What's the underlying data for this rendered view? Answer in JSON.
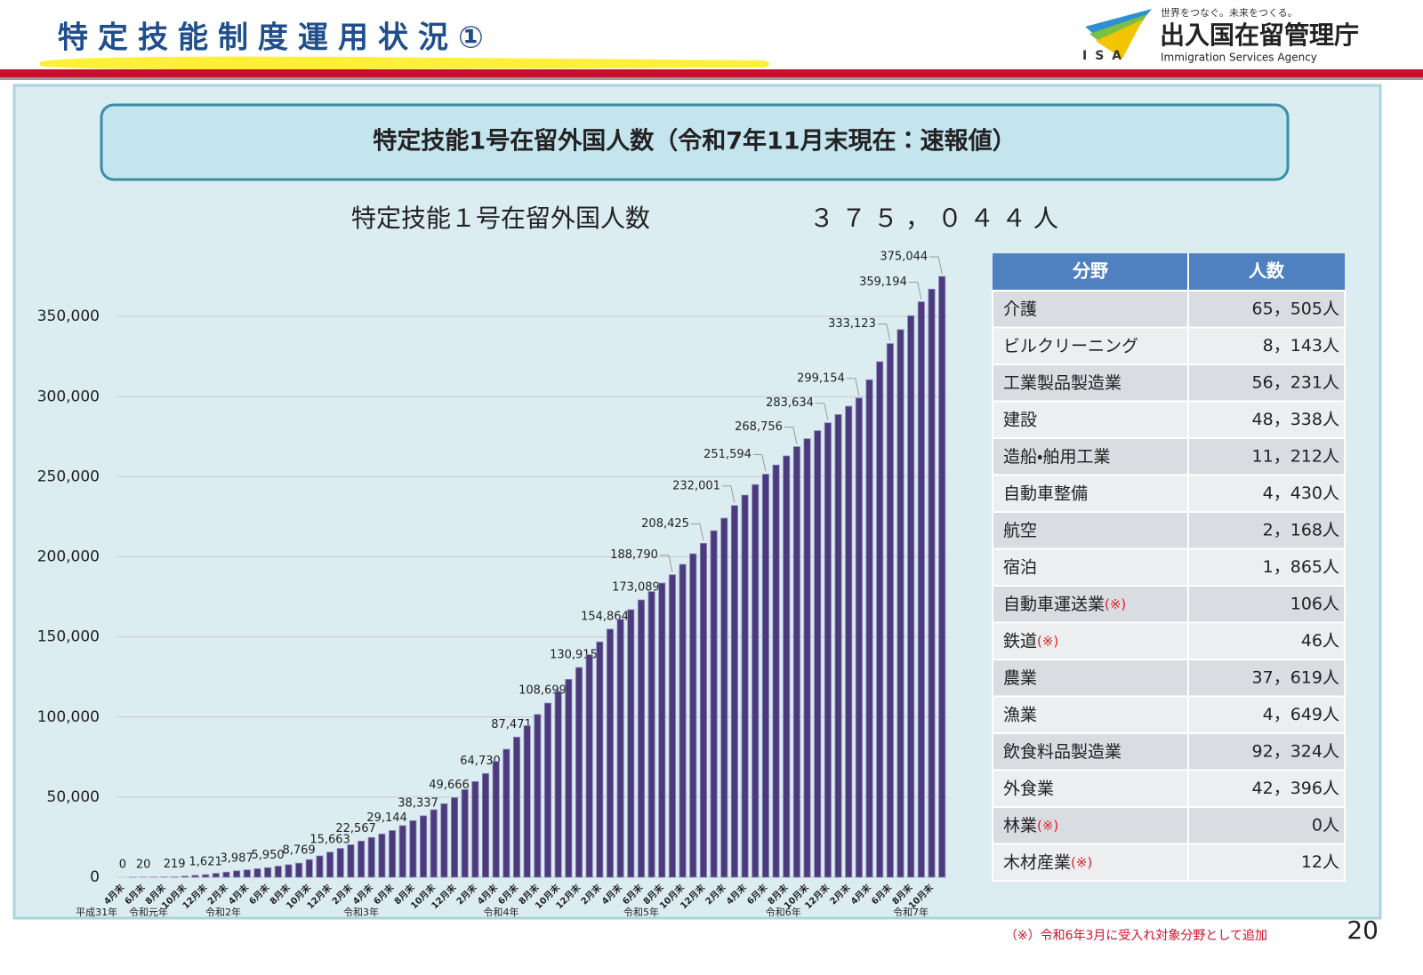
{
  "header": {
    "title": "特定技能制度運用状況①",
    "logo_tagline": "世界をつなぐ。未来をつくる。",
    "logo_name": "出入国在留管理庁",
    "logo_english": "Immigration Services Agency",
    "logo_abbr": "ISA"
  },
  "banner": "特定技能1号在留外国人数（令和7年11月末現在：速報値）",
  "chart_data": {
    "type": "bar",
    "title": "特定技能１号在留外国人数",
    "total": "３７５，０４４人",
    "color": "#4b3b7c",
    "categories": [
      "4月末",
      null,
      "6月末",
      null,
      "8月末",
      null,
      "10月末",
      null,
      "12月末",
      null,
      "2月末",
      null,
      "4月末",
      null,
      "6月末",
      null,
      "8月末",
      null,
      "10月末",
      null,
      "12月末",
      null,
      "2月末",
      null,
      "4月末",
      null,
      "6月末",
      null,
      "8月末",
      null,
      "10月末",
      null,
      "12月末",
      null,
      "2月末",
      null,
      "4月末",
      null,
      "6月末",
      null,
      "8月末",
      null,
      "10月末",
      null,
      "12月末",
      null,
      "2月末",
      null,
      "4月末",
      null,
      "6月末",
      null,
      "8月末",
      null,
      "10月末",
      null,
      "12月末",
      null,
      "2月末",
      null,
      "4月末",
      null,
      "6月末",
      null,
      "8月末",
      null,
      "10月末",
      null,
      "12月末",
      null,
      "2月末",
      null,
      "4月末",
      null,
      "6月末",
      null,
      "8月末",
      null,
      "10月末",
      null
    ],
    "year_labels": [
      "平成31年",
      "令和元年",
      "令和2年",
      "令和3年",
      "令和4年",
      "令和5年",
      "令和6年",
      "令和7年"
    ],
    "values": [
      0,
      10,
      20,
      80,
      150,
      219,
      700,
      1200,
      1621,
      2400,
      3200,
      3987,
      4600,
      5300,
      5950,
      6900,
      7800,
      8769,
      11000,
      13300,
      15663,
      18000,
      20300,
      22567,
      24800,
      27000,
      29144,
      32200,
      35300,
      38337,
      42100,
      45900,
      49666,
      54700,
      59700,
      64730,
      72300,
      79900,
      87471,
      94600,
      101600,
      108699,
      116100,
      123500,
      130915,
      138900,
      146900,
      154864,
      161000,
      167000,
      173089,
      178300,
      183600,
      188790,
      195300,
      201900,
      208425,
      216300,
      224100,
      232001,
      238500,
      245100,
      251594,
      257300,
      263000,
      268756,
      273700,
      278700,
      283634,
      288800,
      294000,
      299154,
      310500,
      321800,
      333123,
      341800,
      350500,
      359194,
      367100,
      375044
    ],
    "value_labels": [
      "0",
      null,
      "20",
      null,
      null,
      "219",
      null,
      null,
      "1,621",
      null,
      null,
      "3,987",
      null,
      null,
      "5,950",
      null,
      null,
      "8,769",
      null,
      null,
      "15,663",
      null,
      null,
      "22,567",
      null,
      null,
      "29,144",
      null,
      null,
      "38,337",
      null,
      null,
      "49,666",
      null,
      null,
      "64,730",
      null,
      null,
      "87,471",
      null,
      null,
      "108,699",
      null,
      null,
      "130,915",
      null,
      null,
      "154,864",
      null,
      null,
      "173,089",
      null,
      null,
      "188,790",
      null,
      null,
      "208,425",
      null,
      null,
      "232,001",
      null,
      null,
      "251,594",
      null,
      null,
      "268,756",
      null,
      null,
      "283,634",
      null,
      null,
      "299,154",
      null,
      null,
      "333,123",
      null,
      null,
      "359,194",
      null,
      "375,044"
    ],
    "ylim": [
      0,
      400000
    ],
    "yticks": [
      0,
      {
        "value": 50000,
        "label": "50,000"
      },
      {
        "value": 100000,
        "label": "100,000"
      },
      {
        "value": 150000,
        "label": "150,000"
      },
      {
        "value": 200000,
        "label": "200,000"
      },
      {
        "value": 250000,
        "label": "250,000"
      },
      {
        "value": 300000,
        "label": "300,000"
      },
      {
        "value": 350000,
        "label": "350,000"
      }
    ],
    "grid": true
  },
  "table": {
    "headers": [
      "分野",
      "人数"
    ],
    "rows": [
      {
        "field": "介護",
        "count": "65，505人"
      },
      {
        "field": "ビルクリーニング",
        "count": "8，143人"
      },
      {
        "field": "工業製品製造業",
        "count": "56，231人"
      },
      {
        "field": "建設",
        "count": "48，338人"
      },
      {
        "field": "造船・舶用工業",
        "count": "11，212人"
      },
      {
        "field": "自動車整備",
        "count": "4，430人"
      },
      {
        "field": "航空",
        "count": "2，168人"
      },
      {
        "field": "宿泊",
        "count": "1，865人"
      },
      {
        "field": "自動車運送業",
        "note": "(※)",
        "count": "106人"
      },
      {
        "field": "鉄道",
        "note": "(※)",
        "count": "46人"
      },
      {
        "field": "農業",
        "count": "37，619人"
      },
      {
        "field": "漁業",
        "count": "4，649人"
      },
      {
        "field": "飲食料品製造業",
        "count": "92，324人"
      },
      {
        "field": "外食業",
        "count": "42，396人"
      },
      {
        "field": "林業",
        "note": "(※)",
        "count": "0人"
      },
      {
        "field": "木材産業",
        "note": "(※)",
        "count": "12人"
      }
    ]
  },
  "footnote": "（※）令和6年3月に受入れ対象分野として追加",
  "page_number": "20"
}
